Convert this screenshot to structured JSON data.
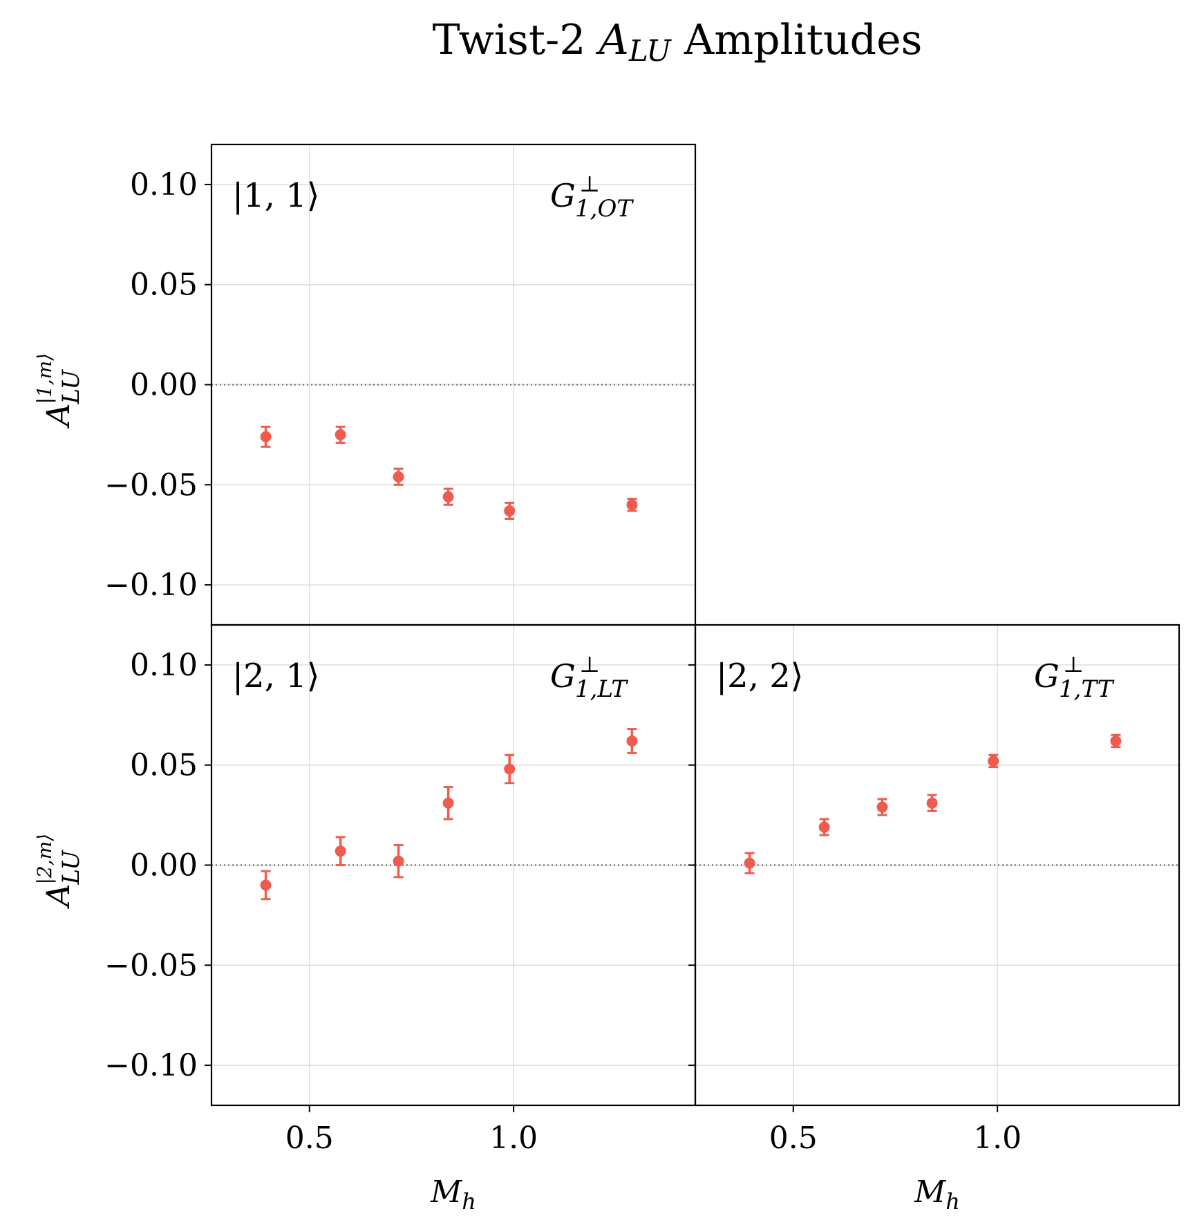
{
  "chart_data": {
    "type": "scatter",
    "title": "Twist-2 A_LU Amplitudes",
    "title_parts": {
      "pre": "Twist-2 ",
      "sym": "A",
      "sub": "LU",
      "post": " Amplitudes"
    },
    "x_range": [
      0.26,
      1.445
    ],
    "y_range": [
      -0.12,
      0.12
    ],
    "x_ticks": [
      0.5,
      1.0
    ],
    "x_tick_labels": [
      "0.5",
      "1.0"
    ],
    "y_ticks": [
      0.1,
      0.05,
      0.0,
      -0.05,
      -0.1
    ],
    "y_tick_labels": [
      "0.10",
      "0.05",
      "0.00",
      "−0.05",
      "−0.10"
    ],
    "xlabel": {
      "sym": "M",
      "sub": "h"
    },
    "rows": [
      {
        "ylabel": {
          "sym": "A",
          "sup": "|1,m⟩",
          "sub": "LU"
        }
      },
      {
        "ylabel": {
          "sym": "A",
          "sup": "|2,m⟩",
          "sub": "LU"
        }
      }
    ],
    "marker_color": "#f05b4f",
    "zero_line_color": "#708090",
    "grid_color": "#dddddd",
    "panels": [
      {
        "row": 0,
        "col": 0,
        "state": "|1, 1⟩",
        "function": {
          "sym": "G",
          "sup": "⊥",
          "sub": "1,OT"
        },
        "points": [
          {
            "x": 0.393,
            "y": -0.026,
            "err": 0.005
          },
          {
            "x": 0.576,
            "y": -0.025,
            "err": 0.004
          },
          {
            "x": 0.718,
            "y": -0.046,
            "err": 0.004
          },
          {
            "x": 0.84,
            "y": -0.056,
            "err": 0.004
          },
          {
            "x": 0.99,
            "y": -0.063,
            "err": 0.004
          },
          {
            "x": 1.29,
            "y": -0.06,
            "err": 0.003
          }
        ]
      },
      {
        "row": 1,
        "col": 0,
        "state": "|2, 1⟩",
        "function": {
          "sym": "G",
          "sup": "⊥",
          "sub": "1,LT"
        },
        "points": [
          {
            "x": 0.393,
            "y": -0.01,
            "err": 0.007
          },
          {
            "x": 0.576,
            "y": 0.007,
            "err": 0.007
          },
          {
            "x": 0.718,
            "y": 0.002,
            "err": 0.008
          },
          {
            "x": 0.84,
            "y": 0.031,
            "err": 0.008
          },
          {
            "x": 0.99,
            "y": 0.048,
            "err": 0.007
          },
          {
            "x": 1.29,
            "y": 0.062,
            "err": 0.006
          }
        ]
      },
      {
        "row": 1,
        "col": 1,
        "state": "|2, 2⟩",
        "function": {
          "sym": "G",
          "sup": "⊥",
          "sub": "1,TT"
        },
        "points": [
          {
            "x": 0.393,
            "y": 0.001,
            "err": 0.005
          },
          {
            "x": 0.576,
            "y": 0.019,
            "err": 0.004
          },
          {
            "x": 0.718,
            "y": 0.029,
            "err": 0.004
          },
          {
            "x": 0.84,
            "y": 0.031,
            "err": 0.004
          },
          {
            "x": 0.99,
            "y": 0.052,
            "err": 0.003
          },
          {
            "x": 1.29,
            "y": 0.062,
            "err": 0.003
          }
        ]
      }
    ]
  }
}
